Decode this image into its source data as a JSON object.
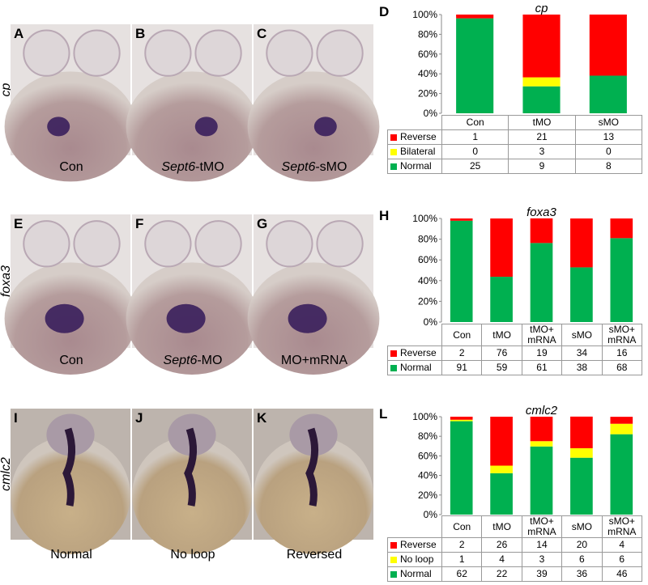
{
  "figure": {
    "rows": [
      {
        "ylabel": "cp",
        "panels": [
          {
            "letter": "A",
            "caption": [
              {
                "text": "Con"
              }
            ]
          },
          {
            "letter": "B",
            "caption": [
              {
                "text": "Sept6",
                "italic": true
              },
              {
                "text": "-tMO"
              }
            ]
          },
          {
            "letter": "C",
            "caption": [
              {
                "text": "Sept6",
                "italic": true
              },
              {
                "text": "-sMO"
              }
            ]
          }
        ]
      },
      {
        "ylabel": "foxa3",
        "panels": [
          {
            "letter": "E",
            "caption": [
              {
                "text": "Con"
              }
            ]
          },
          {
            "letter": "F",
            "caption": [
              {
                "text": "Sept6",
                "italic": true
              },
              {
                "text": "-MO"
              }
            ]
          },
          {
            "letter": "G",
            "caption": [
              {
                "text": "MO+mRNA"
              }
            ]
          }
        ]
      },
      {
        "ylabel": "cmlc2",
        "panels": [
          {
            "letter": "I",
            "caption": [
              {
                "text": "Normal"
              }
            ]
          },
          {
            "letter": "J",
            "caption": [
              {
                "text": "No loop"
              }
            ]
          },
          {
            "letter": "K",
            "caption": [
              {
                "text": "Reversed"
              }
            ]
          }
        ]
      }
    ]
  },
  "chart_data": [
    {
      "type": "bar",
      "stacked": true,
      "panel_label": "D",
      "title": "cp",
      "categories": [
        "Con",
        "tMO",
        "sMO"
      ],
      "series": [
        {
          "name": "Reverse",
          "color": "#ff0000",
          "values": [
            3.8,
            63.6,
            61.9
          ],
          "counts": [
            1,
            21,
            13
          ]
        },
        {
          "name": "Bilateral",
          "color": "#ffff00",
          "values": [
            0,
            9.1,
            0
          ],
          "counts": [
            0,
            3,
            0
          ]
        },
        {
          "name": "Normal",
          "color": "#00b050",
          "values": [
            96.2,
            27.3,
            38.1
          ],
          "counts": [
            25,
            9,
            8
          ]
        }
      ],
      "ylim": [
        0,
        100
      ],
      "yticks": [
        {
          "value": 0,
          "label": "0%"
        },
        {
          "value": 20,
          "label": "20%"
        },
        {
          "value": 40,
          "label": "40%"
        },
        {
          "value": 60,
          "label": "60%"
        },
        {
          "value": 80,
          "label": "80%"
        },
        {
          "value": 100,
          "label": "100%"
        }
      ]
    },
    {
      "type": "bar",
      "stacked": true,
      "panel_label": "H",
      "title": "foxa3",
      "categories": [
        "Con",
        "tMO",
        "tMO+ mRNA",
        "sMO",
        "sMO+ mRNA"
      ],
      "series": [
        {
          "name": "Reverse",
          "color": "#ff0000",
          "values": [
            2.2,
            56.3,
            23.8,
            47.2,
            19.0
          ],
          "counts": [
            2,
            76,
            19,
            34,
            16
          ]
        },
        {
          "name": "Normal",
          "color": "#00b050",
          "values": [
            97.8,
            43.7,
            76.3,
            52.8,
            81.0
          ],
          "counts": [
            91,
            59,
            61,
            38,
            68
          ]
        }
      ],
      "ylim": [
        0,
        100
      ],
      "yticks": [
        {
          "value": 0,
          "label": "0%"
        },
        {
          "value": 20,
          "label": "20%"
        },
        {
          "value": 40,
          "label": "40%"
        },
        {
          "value": 60,
          "label": "60%"
        },
        {
          "value": 80,
          "label": "80%"
        },
        {
          "value": 100,
          "label": "100%"
        }
      ]
    },
    {
      "type": "bar",
      "stacked": true,
      "panel_label": "L",
      "title": "cmlc2",
      "categories": [
        "Con",
        "tMO",
        "tMO+ mRNA",
        "sMO",
        "sMO+ mRNA"
      ],
      "series": [
        {
          "name": "Reverse",
          "color": "#ff0000",
          "values": [
            3.1,
            50.0,
            25.0,
            32.3,
            7.1
          ],
          "counts": [
            2,
            26,
            14,
            20,
            4
          ]
        },
        {
          "name": "No loop",
          "color": "#ffff00",
          "values": [
            1.5,
            7.7,
            5.4,
            9.7,
            10.7
          ],
          "counts": [
            1,
            4,
            3,
            6,
            6
          ]
        },
        {
          "name": "Normal",
          "color": "#00b050",
          "values": [
            95.4,
            42.3,
            69.6,
            58.1,
            82.1
          ],
          "counts": [
            62,
            22,
            39,
            36,
            46
          ]
        }
      ],
      "ylim": [
        0,
        100
      ],
      "yticks": [
        {
          "value": 0,
          "label": "0%"
        },
        {
          "value": 20,
          "label": "20%"
        },
        {
          "value": 40,
          "label": "40%"
        },
        {
          "value": 60,
          "label": "60%"
        },
        {
          "value": 80,
          "label": "80%"
        },
        {
          "value": 100,
          "label": "100%"
        }
      ]
    }
  ]
}
